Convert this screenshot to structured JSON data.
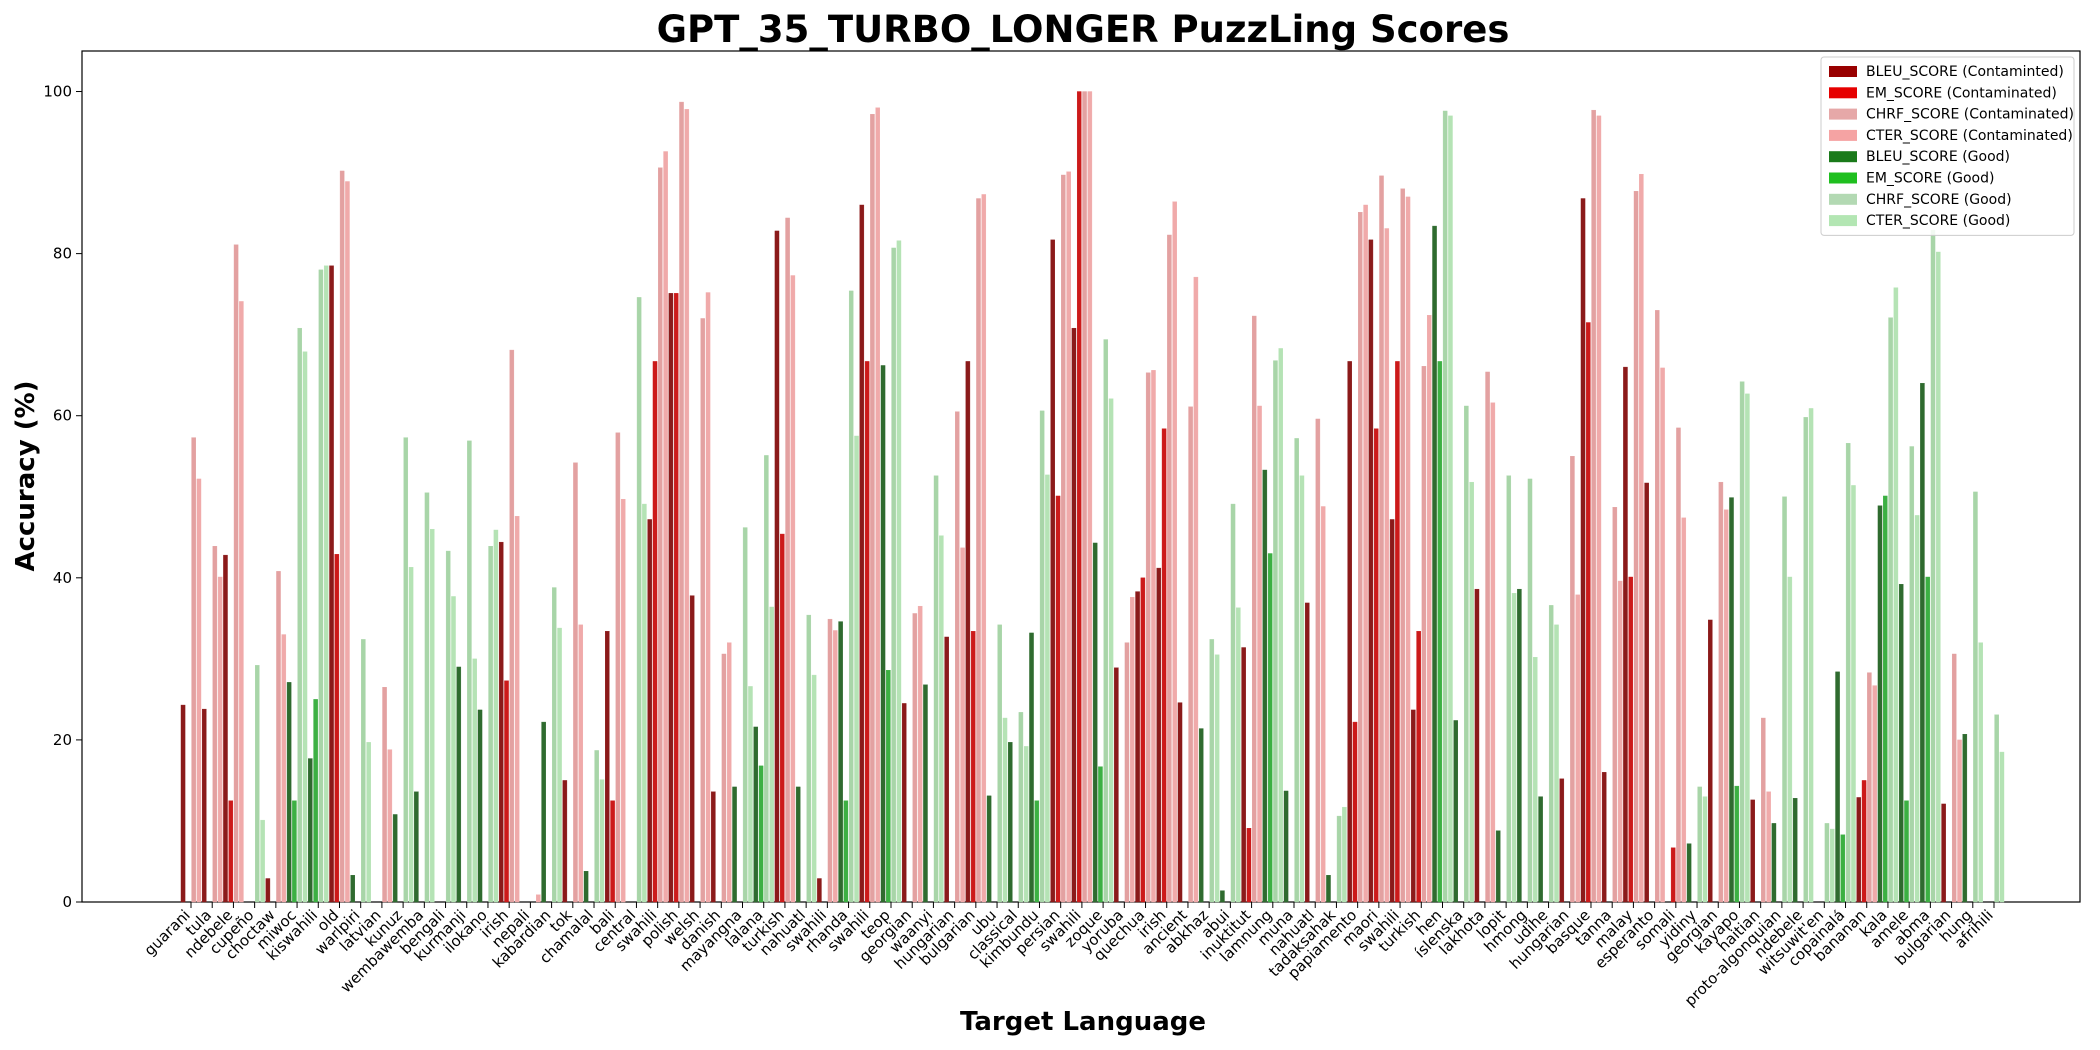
{
  "chart_data": {
    "type": "bar",
    "title": "GPT_35_TURBO_LONGER PuzzLing Scores",
    "xlabel": "Target Language",
    "ylabel": "Accuracy (%)",
    "ylim": [
      0,
      105
    ],
    "yticks": [
      0,
      20,
      40,
      60,
      80,
      100
    ],
    "grid": false,
    "legend_position": "top-right",
    "metrics": [
      "BLEU",
      "EM",
      "CHRF",
      "CTER"
    ],
    "legend": [
      {
        "label": "BLEU_SCORE (Contaminted)",
        "color": "#990000"
      },
      {
        "label": "EM_SCORE (Contaminated)",
        "color": "#e60000"
      },
      {
        "label": "CHRF_SCORE (Contaminated)",
        "color": "#e6a8a8"
      },
      {
        "label": "CTER_SCORE (Contaminated)",
        "color": "#f5a3a3"
      },
      {
        "label": "BLEU_SCORE (Good)",
        "color": "#1a7a1a"
      },
      {
        "label": "EM_SCORE (Good)",
        "color": "#1fbf1f"
      },
      {
        "label": "CHRF_SCORE (Good)",
        "color": "#b3d9b3"
      },
      {
        "label": "CTER_SCORE (Good)",
        "color": "#b3e6b3"
      }
    ],
    "colors": {
      "contaminated": [
        "#8b1a1a",
        "#cc1a1a",
        "#e3a1a1",
        "#f0aaaa"
      ],
      "good": [
        "#2f6b2f",
        "#3cb043",
        "#a8d5a8",
        "#b5e3b5"
      ]
    },
    "categories": [
      {
        "name": "guarani",
        "status": "contaminated",
        "values": [
          24.3,
          0,
          57.3,
          52.2
        ]
      },
      {
        "name": "tula",
        "status": "contaminated",
        "values": [
          23.8,
          0,
          43.9,
          40.1
        ]
      },
      {
        "name": "ndebele",
        "status": "contaminated",
        "values": [
          42.8,
          12.5,
          81.1,
          74.1
        ]
      },
      {
        "name": "cupeño",
        "status": "good",
        "values": [
          0,
          0,
          29.2,
          10.1
        ]
      },
      {
        "name": "choctaw",
        "status": "contaminated",
        "values": [
          2.9,
          0,
          40.8,
          33.0
        ]
      },
      {
        "name": "miwoc",
        "status": "good",
        "values": [
          27.1,
          12.5,
          70.8,
          67.9
        ]
      },
      {
        "name": "kiswahili",
        "status": "good",
        "values": [
          17.7,
          25.0,
          78.0,
          78.5
        ]
      },
      {
        "name": "old",
        "status": "contaminated",
        "values": [
          78.5,
          42.9,
          90.2,
          88.9
        ]
      },
      {
        "name": "warlpiri",
        "status": "good",
        "values": [
          3.3,
          0,
          32.4,
          19.7
        ]
      },
      {
        "name": "latvian",
        "status": "contaminated",
        "values": [
          0,
          0,
          26.5,
          18.8
        ]
      },
      {
        "name": "kunuz",
        "status": "good",
        "values": [
          10.8,
          0,
          57.3,
          41.3
        ]
      },
      {
        "name": "wembawemba",
        "status": "good",
        "values": [
          13.6,
          0,
          50.5,
          46.0
        ]
      },
      {
        "name": "bengali",
        "status": "good",
        "values": [
          0,
          0,
          43.3,
          37.7
        ]
      },
      {
        "name": "kurmanji",
        "status": "good",
        "values": [
          29.0,
          0,
          56.9,
          30.0
        ]
      },
      {
        "name": "ilokano",
        "status": "good",
        "values": [
          23.7,
          0,
          43.9,
          45.9
        ]
      },
      {
        "name": "irish",
        "status": "contaminated",
        "values": [
          44.4,
          27.3,
          68.1,
          47.6
        ]
      },
      {
        "name": "nepali",
        "status": "contaminated",
        "values": [
          0,
          0,
          0,
          0.9
        ]
      },
      {
        "name": "kabardian",
        "status": "good",
        "values": [
          22.2,
          0,
          38.8,
          33.8
        ]
      },
      {
        "name": "tok",
        "status": "contaminated",
        "values": [
          15.0,
          0,
          54.2,
          34.2
        ]
      },
      {
        "name": "chamalal",
        "status": "good",
        "values": [
          3.8,
          0,
          18.7,
          15.1
        ]
      },
      {
        "name": "bali",
        "status": "contaminated",
        "values": [
          33.4,
          12.5,
          57.9,
          49.7
        ]
      },
      {
        "name": "central",
        "status": "good",
        "values": [
          0,
          0,
          74.6,
          49.1
        ]
      },
      {
        "name": "swahili",
        "status": "contaminated",
        "values": [
          47.2,
          66.7,
          90.6,
          92.6
        ]
      },
      {
        "name": "polish",
        "status": "contaminated",
        "values": [
          75.1,
          75.1,
          98.7,
          97.8
        ]
      },
      {
        "name": "welsh",
        "status": "contaminated",
        "values": [
          37.8,
          0,
          72.0,
          75.2
        ]
      },
      {
        "name": "danish",
        "status": "contaminated",
        "values": [
          13.6,
          0,
          30.6,
          32.0
        ]
      },
      {
        "name": "mayangna",
        "status": "good",
        "values": [
          14.2,
          0,
          46.2,
          26.6
        ]
      },
      {
        "name": "lalana",
        "status": "good",
        "values": [
          21.6,
          16.8,
          55.1,
          36.4
        ]
      },
      {
        "name": "turkish",
        "status": "contaminated",
        "values": [
          82.8,
          45.4,
          84.4,
          77.3
        ]
      },
      {
        "name": "nahuatl",
        "status": "good",
        "values": [
          14.2,
          0,
          35.4,
          28.0
        ]
      },
      {
        "name": "swahili",
        "status": "contaminated",
        "values": [
          2.9,
          0,
          34.9,
          33.5
        ]
      },
      {
        "name": "rhanda",
        "status": "good",
        "values": [
          34.6,
          12.5,
          75.4,
          57.5
        ]
      },
      {
        "name": "swahili",
        "status": "contaminated",
        "values": [
          86.0,
          66.7,
          97.2,
          98.0
        ]
      },
      {
        "name": "teop",
        "status": "good",
        "values": [
          66.2,
          28.6,
          80.7,
          81.6
        ]
      },
      {
        "name": "georgian",
        "status": "contaminated",
        "values": [
          24.5,
          0,
          35.6,
          36.5
        ]
      },
      {
        "name": "waanyi",
        "status": "good",
        "values": [
          26.8,
          0,
          52.6,
          45.2
        ]
      },
      {
        "name": "hungarian",
        "status": "contaminated",
        "values": [
          32.7,
          0,
          60.5,
          43.7
        ]
      },
      {
        "name": "bulgarian",
        "status": "contaminated",
        "values": [
          66.7,
          33.4,
          86.8,
          87.3
        ]
      },
      {
        "name": "ubu",
        "status": "good",
        "values": [
          13.1,
          0,
          34.2,
          22.7
        ]
      },
      {
        "name": "classical",
        "status": "good",
        "values": [
          19.7,
          0,
          23.4,
          19.2
        ]
      },
      {
        "name": "kimbundu",
        "status": "good",
        "values": [
          33.2,
          12.5,
          60.6,
          52.7
        ]
      },
      {
        "name": "persian",
        "status": "contaminated",
        "values": [
          81.7,
          50.1,
          89.7,
          90.1
        ]
      },
      {
        "name": "swahili",
        "status": "contaminated",
        "values": [
          70.8,
          100.0,
          100.0,
          100.0
        ]
      },
      {
        "name": "zoque",
        "status": "good",
        "values": [
          44.3,
          16.7,
          69.4,
          62.1
        ]
      },
      {
        "name": "yoruba",
        "status": "contaminated",
        "values": [
          28.9,
          0,
          32.0,
          37.6
        ]
      },
      {
        "name": "quechua",
        "status": "contaminated",
        "values": [
          38.3,
          40.0,
          65.3,
          65.6
        ]
      },
      {
        "name": "irish",
        "status": "contaminated",
        "values": [
          41.2,
          58.4,
          82.3,
          86.4
        ]
      },
      {
        "name": "ancient",
        "status": "contaminated",
        "values": [
          24.6,
          0,
          61.1,
          77.1
        ]
      },
      {
        "name": "abkhaz",
        "status": "good",
        "values": [
          21.4,
          0,
          32.4,
          30.5
        ]
      },
      {
        "name": "abui",
        "status": "good",
        "values": [
          1.4,
          0,
          49.1,
          36.3
        ]
      },
      {
        "name": "inuktitut",
        "status": "contaminated",
        "values": [
          31.4,
          9.1,
          72.3,
          61.2
        ]
      },
      {
        "name": "lamnung",
        "status": "good",
        "values": [
          53.3,
          43.0,
          66.8,
          68.3
        ]
      },
      {
        "name": "muna",
        "status": "good",
        "values": [
          13.7,
          0,
          57.2,
          52.6
        ]
      },
      {
        "name": "nahuatl",
        "status": "contaminated",
        "values": [
          36.9,
          0,
          59.6,
          48.8
        ]
      },
      {
        "name": "tadaksahak",
        "status": "good",
        "values": [
          3.3,
          0,
          10.6,
          11.7
        ]
      },
      {
        "name": "papiamento",
        "status": "contaminated",
        "values": [
          66.7,
          22.2,
          85.1,
          86.0
        ]
      },
      {
        "name": "maori",
        "status": "contaminated",
        "values": [
          81.7,
          58.4,
          89.6,
          83.1
        ]
      },
      {
        "name": "swahili",
        "status": "contaminated",
        "values": [
          47.2,
          66.7,
          88.0,
          87.0
        ]
      },
      {
        "name": "turkish",
        "status": "contaminated",
        "values": [
          23.7,
          33.4,
          66.1,
          72.4
        ]
      },
      {
        "name": "hen",
        "status": "good",
        "values": [
          83.4,
          66.7,
          97.6,
          97.0
        ]
      },
      {
        "name": "íslenska",
        "status": "good",
        "values": [
          22.4,
          0,
          61.2,
          51.8
        ]
      },
      {
        "name": "lakhota",
        "status": "contaminated",
        "values": [
          38.6,
          0,
          65.4,
          61.6
        ]
      },
      {
        "name": "lopit",
        "status": "good",
        "values": [
          8.8,
          0,
          52.6,
          38.1
        ]
      },
      {
        "name": "hmong",
        "status": "good",
        "values": [
          38.6,
          0,
          52.2,
          30.2
        ]
      },
      {
        "name": "udihe",
        "status": "good",
        "values": [
          13.0,
          0,
          36.6,
          34.2
        ]
      },
      {
        "name": "hungarian",
        "status": "contaminated",
        "values": [
          15.2,
          0,
          55.0,
          37.9
        ]
      },
      {
        "name": "basque",
        "status": "contaminated",
        "values": [
          86.8,
          71.5,
          97.7,
          97.0
        ]
      },
      {
        "name": "tanna",
        "status": "contaminated",
        "values": [
          16.0,
          0,
          48.7,
          39.6
        ]
      },
      {
        "name": "malay",
        "status": "contaminated",
        "values": [
          66.0,
          40.1,
          87.7,
          89.8
        ]
      },
      {
        "name": "esperanto",
        "status": "contaminated",
        "values": [
          51.7,
          0,
          73.0,
          65.9
        ]
      },
      {
        "name": "somali",
        "status": "contaminated",
        "values": [
          0,
          6.7,
          58.5,
          47.4
        ]
      },
      {
        "name": "yidiny",
        "status": "good",
        "values": [
          7.2,
          0,
          14.2,
          13.0
        ]
      },
      {
        "name": "georgian",
        "status": "contaminated",
        "values": [
          34.8,
          0,
          51.8,
          48.4
        ]
      },
      {
        "name": "kayapo",
        "status": "good",
        "values": [
          49.9,
          14.3,
          64.2,
          62.7
        ]
      },
      {
        "name": "haitian",
        "status": "contaminated",
        "values": [
          12.6,
          0,
          22.7,
          13.6
        ]
      },
      {
        "name": "proto-algonquian",
        "status": "good",
        "values": [
          9.7,
          0,
          50.0,
          40.1
        ]
      },
      {
        "name": "ndebele",
        "status": "good",
        "values": [
          12.8,
          0,
          59.8,
          60.9
        ]
      },
      {
        "name": "witsuwit'en",
        "status": "good",
        "values": [
          0,
          0,
          9.7,
          9.0
        ]
      },
      {
        "name": "copainalá",
        "status": "good",
        "values": [
          28.4,
          8.3,
          56.6,
          51.4
        ]
      },
      {
        "name": "bananan",
        "status": "contaminated",
        "values": [
          12.9,
          15.0,
          28.3,
          26.7
        ]
      },
      {
        "name": "kala",
        "status": "good",
        "values": [
          48.9,
          50.1,
          72.1,
          75.8
        ]
      },
      {
        "name": "amele",
        "status": "good",
        "values": [
          39.2,
          12.5,
          56.2,
          47.7
        ]
      },
      {
        "name": "abma",
        "status": "good",
        "values": [
          64.0,
          40.1,
          82.9,
          80.2
        ]
      },
      {
        "name": "bulgarian",
        "status": "contaminated",
        "values": [
          12.1,
          0,
          30.6,
          20.0
        ]
      },
      {
        "name": "hung",
        "status": "good",
        "values": [
          20.7,
          0,
          50.6,
          32.0
        ]
      },
      {
        "name": "afrihili",
        "status": "good",
        "values": [
          0,
          0,
          23.1,
          18.5
        ]
      }
    ]
  }
}
